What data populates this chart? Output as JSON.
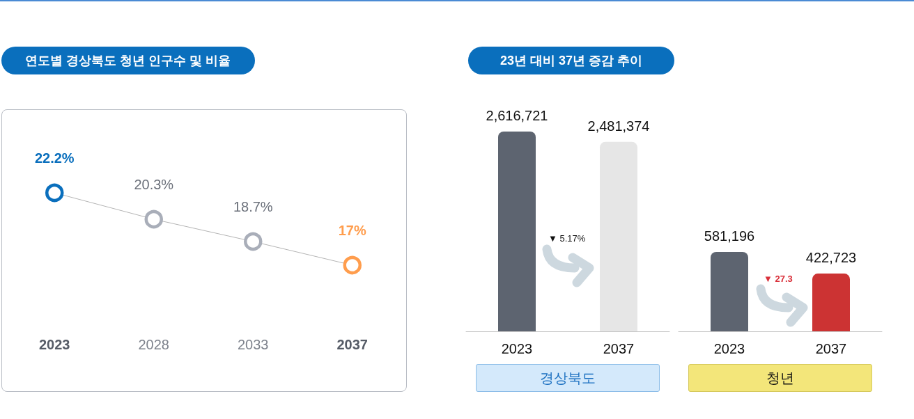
{
  "chart_data": [
    {
      "type": "line",
      "title": "연도별 경상북도 청년 인구수 및 비율",
      "categories": [
        "2023",
        "2028",
        "2033",
        "2037"
      ],
      "values": [
        22.2,
        20.3,
        18.7,
        17
      ],
      "value_labels": [
        "22.2%",
        "20.3%",
        "18.7%",
        "17%"
      ],
      "color": "#b4b4b4",
      "colors": [
        "#0a6fbd",
        "#a9aeb9",
        "#a9aeb9",
        "#ff9d4d"
      ],
      "marker": "circle",
      "tick_labels": "x"
    },
    {
      "type": "bar",
      "title": "23년 대비 37년 증감 추이",
      "xlabel": "경상북도",
      "categories": [
        "2023",
        "2037"
      ],
      "values": [
        2616721,
        2481374
      ],
      "value_labels": [
        "2,616,721",
        "2,481,374"
      ],
      "colors": [
        "#5d6470",
        "#e6e6e6"
      ],
      "tick_labels": "x",
      "annotations": [
        "▼ 5.17%"
      ]
    },
    {
      "type": "bar",
      "xlabel": "청년",
      "categories": [
        "2023",
        "2037"
      ],
      "values": [
        581196,
        422723
      ],
      "value_labels": [
        "581,196",
        "422,723"
      ],
      "colors": [
        "#5d6470",
        "#cc3333"
      ],
      "tick_labels": "x",
      "annotations": [
        "▼ 27.3"
      ]
    }
  ]
}
